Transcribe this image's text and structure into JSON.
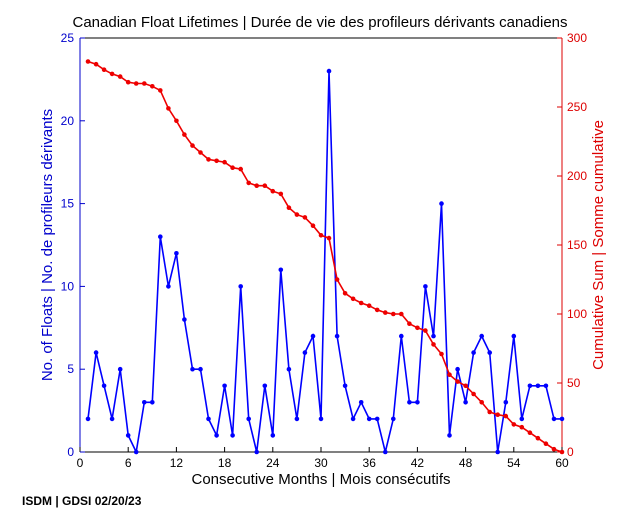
{
  "chart_data": {
    "type": "line",
    "title": "Canadian Float Lifetimes | Durée de vie des profileurs dérivants canadiens",
    "xlabel": "Consecutive Months | Mois consécutifs",
    "ylabel_left": "No. of Floats | No. de profileurs dérivants",
    "ylabel_right": "Cumulative Sum | Somme cumulative",
    "footer": "ISDM | GDSI 02/20/23",
    "xlim": [
      0,
      60
    ],
    "ylim_left": [
      0,
      25
    ],
    "ylim_right": [
      0,
      300
    ],
    "x_ticks": [
      0,
      6,
      12,
      18,
      24,
      30,
      36,
      42,
      48,
      54,
      60
    ],
    "y_ticks_left": [
      0,
      5,
      10,
      15,
      20,
      25
    ],
    "y_ticks_right": [
      0,
      50,
      100,
      150,
      200,
      250,
      300
    ],
    "grid": false,
    "colors": {
      "left_axis": "#0000cc",
      "right_axis": "#dd0000",
      "axes": "#000000"
    },
    "series": [
      {
        "axis": "left",
        "color": "#0000ff",
        "x": [
          1,
          2,
          3,
          4,
          5,
          6,
          7,
          8,
          9,
          10,
          11,
          12,
          13,
          14,
          15,
          16,
          17,
          18,
          19,
          20,
          21,
          22,
          23,
          24,
          25,
          26,
          27,
          28,
          29,
          30,
          31,
          32,
          33,
          34,
          35,
          36,
          37,
          38,
          39,
          40,
          41,
          42,
          43,
          44,
          45,
          46,
          47,
          48,
          49,
          50,
          51,
          52,
          53,
          54,
          55,
          56,
          57,
          58,
          59,
          60
        ],
        "values": [
          2,
          6,
          4,
          2,
          5,
          1,
          0,
          3,
          3,
          13,
          10,
          12,
          8,
          5,
          5,
          2,
          1,
          4,
          1,
          10,
          2,
          0,
          4,
          1,
          11,
          5,
          2,
          6,
          7,
          2,
          23,
          7,
          4,
          2,
          3,
          2,
          2,
          0,
          2,
          7,
          3,
          3,
          10,
          7,
          15,
          1,
          5,
          3,
          6,
          7,
          6,
          0,
          3,
          7,
          2,
          4,
          4,
          4,
          2,
          2
        ]
      },
      {
        "axis": "right",
        "color": "#ee0000",
        "x": [
          1,
          2,
          3,
          4,
          5,
          6,
          7,
          8,
          9,
          10,
          11,
          12,
          13,
          14,
          15,
          16,
          17,
          18,
          19,
          20,
          21,
          22,
          23,
          24,
          25,
          26,
          27,
          28,
          29,
          30,
          31,
          32,
          33,
          34,
          35,
          36,
          37,
          38,
          39,
          40,
          41,
          42,
          43,
          44,
          45,
          46,
          47,
          48,
          49,
          50,
          51,
          52,
          53,
          54,
          55,
          56,
          57,
          58,
          59,
          60
        ],
        "values": [
          283,
          281,
          277,
          274,
          272,
          268,
          267,
          267,
          265,
          262,
          249,
          240,
          230,
          222,
          217,
          212,
          211,
          210,
          206,
          205,
          195,
          193,
          193,
          189,
          187,
          177,
          172,
          170,
          164,
          157,
          155,
          125,
          115,
          111,
          108,
          106,
          103,
          101,
          100,
          100,
          93,
          90,
          88,
          78,
          71,
          56,
          51,
          48,
          42,
          36,
          29,
          27,
          26,
          20,
          18,
          14,
          10,
          6,
          2,
          0
        ]
      }
    ]
  }
}
